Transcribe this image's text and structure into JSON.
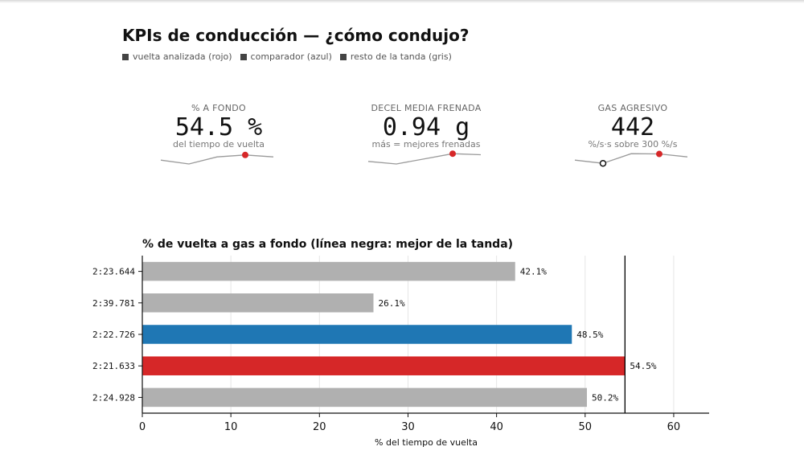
{
  "title": "KPIs de conducción — ¿cómo condujo?",
  "legend": [
    {
      "label": "vuelta analizada (rojo)",
      "icon": "square-icon"
    },
    {
      "label": "comparador (azul)",
      "icon": "square-icon"
    },
    {
      "label": "resto de la tanda (gris)",
      "icon": "square-icon"
    }
  ],
  "kpis": [
    {
      "label": "% A FONDO",
      "value": "54.5 %",
      "sub": "del tiempo de vuelta",
      "spark": [
        0.3,
        0.0,
        0.55,
        0.7,
        0.55
      ],
      "highlight": 3,
      "highlight_style": "filled"
    },
    {
      "label": "DECEL MEDIA FRENADA",
      "value": "0.94 g",
      "sub": "más = mejores frenadas",
      "spark": [
        0.2,
        0.0,
        0.4,
        0.8,
        0.72
      ],
      "highlight": 3,
      "highlight_style": "filled"
    },
    {
      "label": "GAS AGRESIVO",
      "value": "442",
      "sub": "%/s·s sobre 300 %/s",
      "spark": [
        0.3,
        0.05,
        0.8,
        0.78,
        0.55
      ],
      "highlight": 3,
      "highlight_style": "filled",
      "marker": 1
    }
  ],
  "colors": {
    "analyzed": "#d62728",
    "comparator": "#1f77b4",
    "rest": "#b0b0b0",
    "best_line": "#000000"
  },
  "chart_data": {
    "type": "bar",
    "orientation": "horizontal",
    "title": "% de vuelta a gas a fondo (línea negra: mejor de la tanda)",
    "xlabel": "% del tiempo de vuelta",
    "ylabel": "",
    "categories": [
      "2:23.644",
      "2:39.781",
      "2:22.726",
      "2:21.633",
      "2:24.928"
    ],
    "values": [
      42.1,
      26.1,
      48.5,
      54.5,
      50.2
    ],
    "value_labels": [
      "42.1%",
      "26.1%",
      "48.5%",
      "54.5%",
      "50.2%"
    ],
    "bar_roles": [
      "rest",
      "rest",
      "comparator",
      "analyzed",
      "rest"
    ],
    "xlim": [
      0,
      64
    ],
    "xticks": [
      0,
      10,
      20,
      30,
      40,
      50,
      60
    ],
    "reference_line": 54.5,
    "grid": "x"
  }
}
